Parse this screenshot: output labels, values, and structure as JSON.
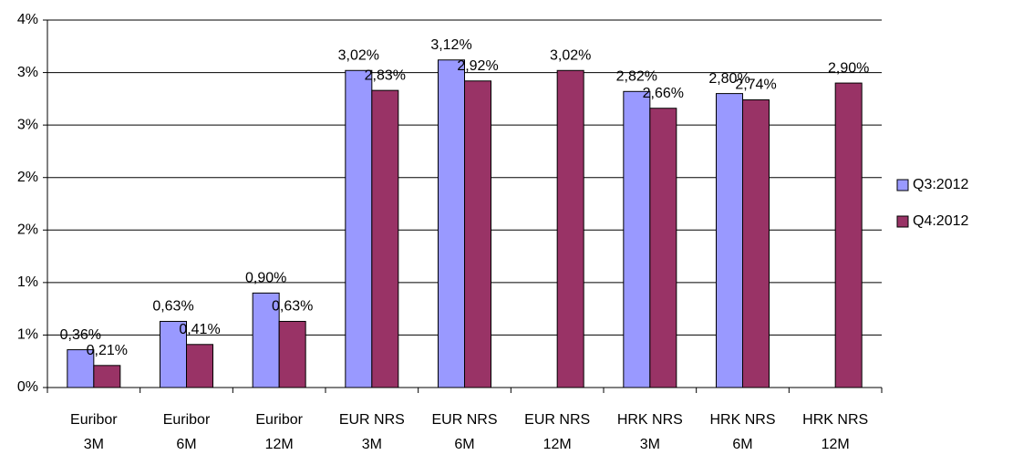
{
  "chart_data": {
    "type": "bar",
    "categories": [
      [
        "Euribor",
        "3M"
      ],
      [
        "Euribor",
        "6M"
      ],
      [
        "Euribor",
        "12M"
      ],
      [
        "EUR NRS",
        "3M"
      ],
      [
        "EUR NRS",
        "6M"
      ],
      [
        "EUR NRS",
        "12M"
      ],
      [
        "HRK NRS",
        "3M"
      ],
      [
        "HRK NRS",
        "6M"
      ],
      [
        "HRK NRS",
        "12M"
      ]
    ],
    "series": [
      {
        "name": "Q3:2012",
        "color": "#9999ff",
        "values": [
          0.36,
          0.63,
          0.9,
          3.02,
          3.12,
          null,
          2.82,
          2.8,
          null
        ],
        "value_labels": [
          "0,36%",
          "0,63%",
          "0,90%",
          "3,02%",
          "3,12%",
          null,
          "2,82%",
          "2,80%",
          null
        ]
      },
      {
        "name": "Q4:2012",
        "color": "#993366",
        "values": [
          0.21,
          0.41,
          0.63,
          2.83,
          2.92,
          3.02,
          2.66,
          2.74,
          2.9
        ],
        "value_labels": [
          "0,21%",
          "0,41%",
          "0,63%",
          "2,83%",
          "2,92%",
          "3,02%",
          "2,66%",
          "2,74%",
          "2,90%"
        ]
      }
    ],
    "ylim": [
      0,
      3.5
    ],
    "yticks": [
      {
        "value": 0,
        "label": "0%"
      },
      {
        "value": 0.5,
        "label": "1%"
      },
      {
        "value": 1,
        "label": "1%"
      },
      {
        "value": 1.5,
        "label": "2%"
      },
      {
        "value": 2,
        "label": "2%"
      },
      {
        "value": 2.5,
        "label": "3%"
      },
      {
        "value": 3,
        "label": "3%"
      },
      {
        "value": 3.5,
        "label": "4%"
      }
    ],
    "grid": true,
    "legend": "right"
  }
}
